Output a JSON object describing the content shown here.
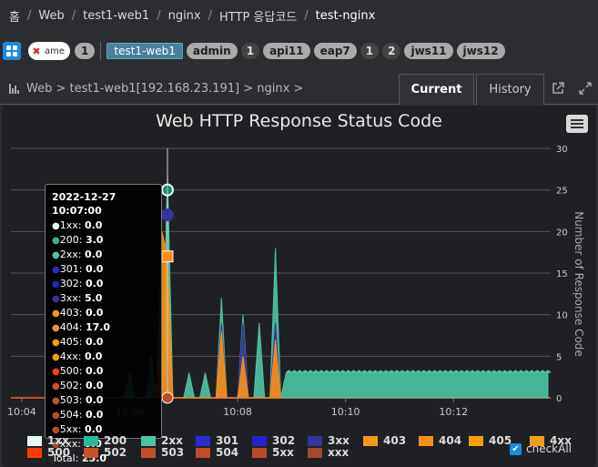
{
  "breadcrumb": [
    "홈",
    "Web",
    "test1-web1",
    "nginx",
    "HTTP 응답코드",
    "test-nginx"
  ],
  "tagbar": {
    "name_input": "ame",
    "name_count": "1",
    "selected_tag": "test1-web1",
    "tags": [
      {
        "label": "admin",
        "count": "1"
      },
      {
        "label": "api11",
        "count": ""
      },
      {
        "label": "eap7",
        "count": "1"
      },
      {
        "label": "",
        "count": "2"
      },
      {
        "label": "jws11",
        "count": ""
      },
      {
        "label": "jws12",
        "count": ""
      }
    ]
  },
  "panel": {
    "path": "Web > test1-web1[192.168.23.191] > nginx >",
    "tab_current": "Current",
    "tab_history": "History"
  },
  "colors": {
    "2xx": "#4cc4a4",
    "200": "#2eb89a",
    "301": "#2a2ad0",
    "302": "#2222cc",
    "3xx": "#333399",
    "403": "#f59a10",
    "404": "#f7901a",
    "405": "#f5a000",
    "4xx": "#f29e14",
    "500": "#ff3d00",
    "502": "#c8502a",
    "503": "#c0502a",
    "504": "#c04a2a",
    "5xx": "#b84a2a",
    "xxx": "#a04a2a",
    "1xx": "#e8f8f4"
  },
  "chart_data": {
    "type": "area",
    "title": "Web HTTP Response Status Code",
    "ylabel": "Number of Response Code",
    "ylim": [
      0,
      30
    ],
    "yticks": [
      0,
      5,
      10,
      15,
      20,
      25,
      30
    ],
    "x_ticks": [
      "10:04",
      "10:06",
      "10:08",
      "10:10",
      "10:12"
    ],
    "x_minutes": [
      0,
      2,
      4,
      6,
      8
    ],
    "x_range_minutes": [
      -0.2,
      9.8
    ],
    "series": [
      {
        "name": "2xx",
        "points": [
          [
            1.9,
            0
          ],
          [
            2.0,
            3
          ],
          [
            2.1,
            0
          ],
          [
            2.3,
            0
          ],
          [
            2.4,
            5
          ],
          [
            2.5,
            0
          ],
          [
            2.6,
            0
          ],
          [
            2.7,
            27
          ],
          [
            2.8,
            0
          ],
          [
            3.0,
            0
          ],
          [
            3.1,
            3
          ],
          [
            3.2,
            0
          ],
          [
            3.3,
            0
          ],
          [
            3.4,
            3
          ],
          [
            3.5,
            0
          ],
          [
            3.6,
            0
          ],
          [
            3.7,
            12
          ],
          [
            3.8,
            0
          ],
          [
            4.0,
            0
          ],
          [
            4.1,
            10
          ],
          [
            4.2,
            0
          ],
          [
            4.3,
            0
          ],
          [
            4.4,
            9
          ],
          [
            4.5,
            0
          ],
          [
            4.6,
            0
          ],
          [
            4.7,
            18
          ],
          [
            4.8,
            0
          ],
          [
            4.9,
            3
          ],
          [
            9.75,
            3
          ]
        ]
      },
      {
        "name": "3xx",
        "points": [
          [
            2.6,
            0
          ],
          [
            2.7,
            5
          ],
          [
            2.8,
            0
          ],
          [
            3.6,
            0
          ],
          [
            3.7,
            9
          ],
          [
            3.8,
            0
          ],
          [
            4.0,
            0
          ],
          [
            4.1,
            9
          ],
          [
            4.2,
            0
          ],
          [
            4.6,
            0
          ],
          [
            4.7,
            9
          ],
          [
            4.8,
            0
          ]
        ]
      },
      {
        "name": "404",
        "points": [
          [
            2.5,
            0
          ],
          [
            2.6,
            20
          ],
          [
            2.7,
            17
          ],
          [
            2.8,
            0
          ],
          [
            3.6,
            0
          ],
          [
            3.7,
            8
          ],
          [
            3.8,
            0
          ],
          [
            4.0,
            0
          ],
          [
            4.1,
            5
          ],
          [
            4.2,
            0
          ],
          [
            4.6,
            0
          ],
          [
            4.7,
            7
          ],
          [
            4.8,
            0
          ]
        ]
      }
    ],
    "tooltip": {
      "time": "2022-12-27 10:07:00",
      "rows": [
        {
          "label": "1xx",
          "value": "0.0"
        },
        {
          "label": "200",
          "value": "3.0"
        },
        {
          "label": "2xx",
          "value": "0.0"
        },
        {
          "label": "301",
          "value": "0.0"
        },
        {
          "label": "302",
          "value": "0.0"
        },
        {
          "label": "3xx",
          "value": "5.0"
        },
        {
          "label": "403",
          "value": "0.0"
        },
        {
          "label": "404",
          "value": "17.0"
        },
        {
          "label": "405",
          "value": "0.0"
        },
        {
          "label": "4xx",
          "value": "0.0"
        },
        {
          "label": "500",
          "value": "0.0"
        },
        {
          "label": "502",
          "value": "0.0"
        },
        {
          "label": "503",
          "value": "0.0"
        },
        {
          "label": "504",
          "value": "0.0"
        },
        {
          "label": "5xx",
          "value": "0.0"
        },
        {
          "label": "xxx",
          "value": "0.0"
        }
      ],
      "total_label": "Total:",
      "total_value": "25.0"
    },
    "legend": [
      "1xx",
      "200",
      "2xx",
      "301",
      "302",
      "3xx",
      "403",
      "404",
      "405",
      "4xx",
      "500",
      "502",
      "503",
      "504",
      "5xx",
      "xxx"
    ]
  },
  "checkall_label": "checkAll"
}
